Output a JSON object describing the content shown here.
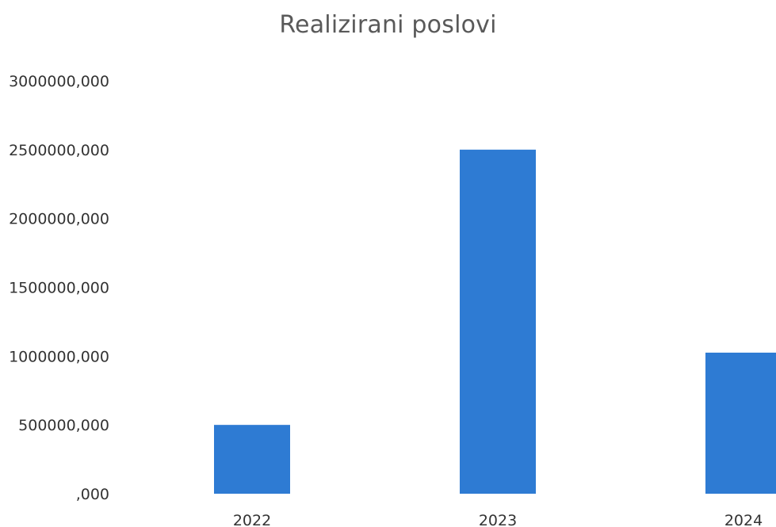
{
  "chart_data": {
    "type": "bar",
    "title": "Realizirani poslovi",
    "xlabel": "",
    "ylabel": "",
    "categories": [
      "2022",
      "2023",
      "2024"
    ],
    "values": [
      500000,
      2500000,
      1025000
    ],
    "ylim": [
      0,
      3000000
    ],
    "y_ticks": [
      0,
      500000,
      1000000,
      1500000,
      2000000,
      2500000,
      3000000
    ],
    "y_tick_labels": [
      ",000",
      "500000,000",
      "1000000,000",
      "1500000,000",
      "2000000,000",
      "2500000,000",
      "3000000,000"
    ],
    "grid": false,
    "legend": "none",
    "colors": {
      "bar": "#2E7BD3",
      "text": "#333333",
      "title": "#595959"
    }
  }
}
